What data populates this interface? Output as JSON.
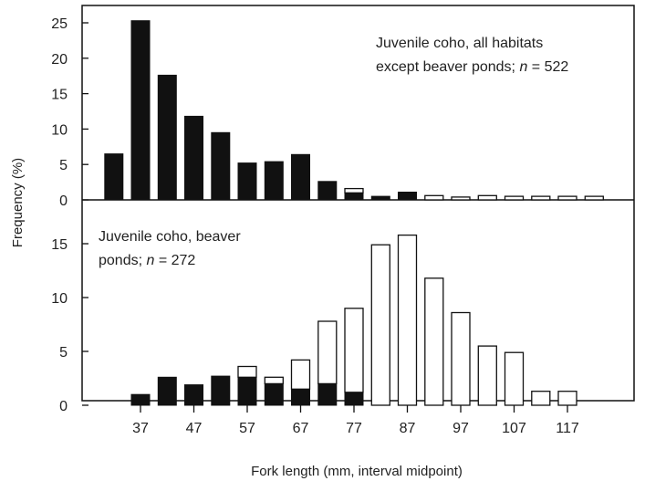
{
  "chart_data": [
    {
      "type": "bar",
      "stacked": true,
      "panel": "top",
      "annotation_lines": [
        "Juvenile coho, all habitats",
        "except beaver ponds; "
      ],
      "annotation_n_label": "n",
      "annotation_n_value": " = 522",
      "categories": [
        32,
        37,
        42,
        47,
        52,
        57,
        62,
        67,
        72,
        77,
        82,
        87,
        92,
        97,
        102,
        107,
        112,
        117,
        122
      ],
      "series": [
        {
          "style": "filled",
          "values": [
            6.5,
            25.3,
            17.6,
            11.8,
            9.5,
            5.2,
            5.4,
            6.4,
            2.6,
            1.0,
            0.5,
            1.1,
            0,
            0,
            0,
            0,
            0,
            0,
            0
          ]
        },
        {
          "style": "open",
          "values": [
            0,
            0,
            0,
            0,
            0,
            0,
            0,
            0,
            0,
            0.6,
            0,
            0,
            0.6,
            0.4,
            0.6,
            0.5,
            0.5,
            0.5,
            0.5
          ]
        }
      ],
      "yticks": [
        0,
        5,
        10,
        15,
        20,
        25
      ],
      "ylim": [
        0,
        27
      ]
    },
    {
      "type": "bar",
      "stacked": true,
      "panel": "bottom",
      "annotation_lines": [
        "Juvenile coho, beaver",
        "ponds; "
      ],
      "annotation_n_label": "n",
      "annotation_n_value": " = 272",
      "categories": [
        32,
        37,
        42,
        47,
        52,
        57,
        62,
        67,
        72,
        77,
        82,
        87,
        92,
        97,
        102,
        107,
        112,
        117,
        122
      ],
      "series": [
        {
          "style": "filled",
          "values": [
            0,
            1.0,
            2.6,
            1.9,
            2.7,
            2.6,
            2.0,
            1.5,
            2.0,
            1.2,
            0,
            0,
            0,
            0,
            0,
            0,
            0,
            0,
            0
          ]
        },
        {
          "style": "open",
          "values": [
            0,
            0,
            0,
            0,
            0,
            1.0,
            0.6,
            2.7,
            5.8,
            7.8,
            14.9,
            15.8,
            11.8,
            8.6,
            5.5,
            4.9,
            1.3,
            1.3,
            0
          ]
        }
      ],
      "yticks": [
        0,
        5,
        10,
        15
      ],
      "ylim": [
        0,
        17.5
      ]
    }
  ],
  "shared": {
    "ylabel": "Frequency (%)",
    "xlabel": "Fork length (mm, interval midpoint)",
    "xticks": [
      37,
      47,
      57,
      67,
      77,
      87,
      97,
      107,
      117
    ]
  }
}
